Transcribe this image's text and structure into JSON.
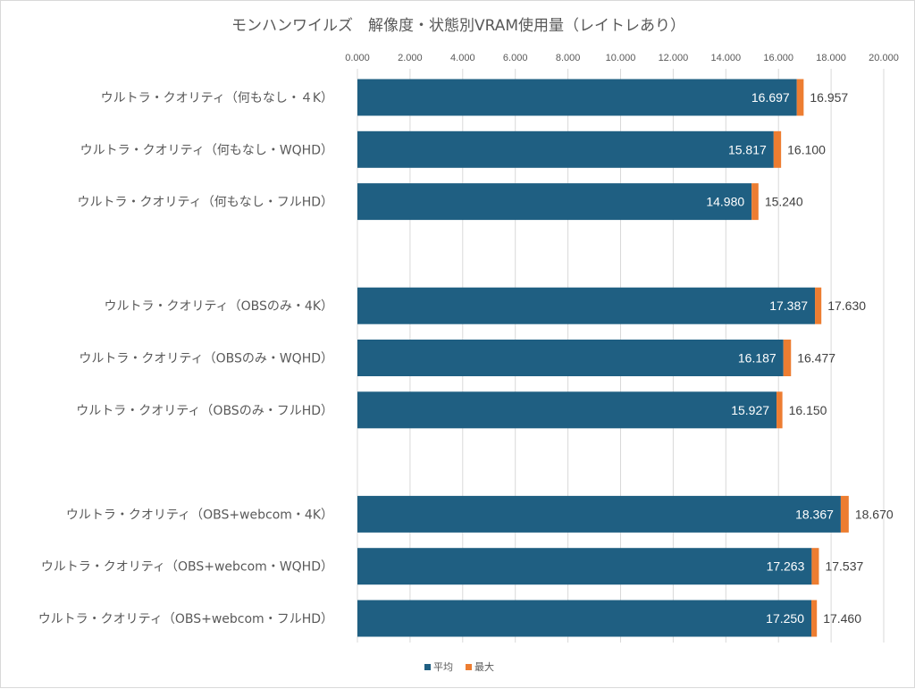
{
  "chart_data": {
    "type": "bar",
    "orientation": "horizontal",
    "stacked": true,
    "title": "モンハンワイルズ　解像度・状態別VRAM使用量（レイトレあり）",
    "xlim": [
      0,
      20
    ],
    "x_ticks": [
      "0.000",
      "2.000",
      "4.000",
      "6.000",
      "8.000",
      "10.000",
      "12.000",
      "14.000",
      "16.000",
      "18.000",
      "20.000"
    ],
    "x_axis_position": "top",
    "grid": true,
    "legend_position": "bottom",
    "groups": [
      {
        "rows": [
          {
            "category": "ウルトラ・クオリティ（何もなし・４K）",
            "avg": 16.697,
            "avg_label": "16.697",
            "max": 16.957,
            "max_label": "16.957"
          },
          {
            "category": "ウルトラ・クオリティ（何もなし・WQHD）",
            "avg": 15.817,
            "avg_label": "15.817",
            "max": 16.1,
            "max_label": "16.100"
          },
          {
            "category": "ウルトラ・クオリティ（何もなし・フルHD）",
            "avg": 14.98,
            "avg_label": "14.980",
            "max": 15.24,
            "max_label": "15.240"
          }
        ]
      },
      {
        "rows": [
          {
            "category": "ウルトラ・クオリティ（OBSのみ・4K）",
            "avg": 17.387,
            "avg_label": "17.387",
            "max": 17.63,
            "max_label": "17.630"
          },
          {
            "category": "ウルトラ・クオリティ（OBSのみ・WQHD）",
            "avg": 16.187,
            "avg_label": "16.187",
            "max": 16.477,
            "max_label": "16.477"
          },
          {
            "category": "ウルトラ・クオリティ（OBSのみ・フルHD）",
            "avg": 15.927,
            "avg_label": "15.927",
            "max": 16.15,
            "max_label": "16.150"
          }
        ]
      },
      {
        "rows": [
          {
            "category": "ウルトラ・クオリティ（OBS+webcom・4K）",
            "avg": 18.367,
            "avg_label": "18.367",
            "max": 18.67,
            "max_label": "18.670"
          },
          {
            "category": "ウルトラ・クオリティ（OBS+webcom・WQHD）",
            "avg": 17.263,
            "avg_label": "17.263",
            "max": 17.537,
            "max_label": "17.537"
          },
          {
            "category": "ウルトラ・クオリティ（OBS+webcom・フルHD）",
            "avg": 17.25,
            "avg_label": "17.250",
            "max": 17.46,
            "max_label": "17.460"
          }
        ]
      }
    ],
    "series": [
      {
        "name": "平均",
        "color": "#1f5f82"
      },
      {
        "name": "最大",
        "color": "#ed7d31"
      }
    ]
  }
}
